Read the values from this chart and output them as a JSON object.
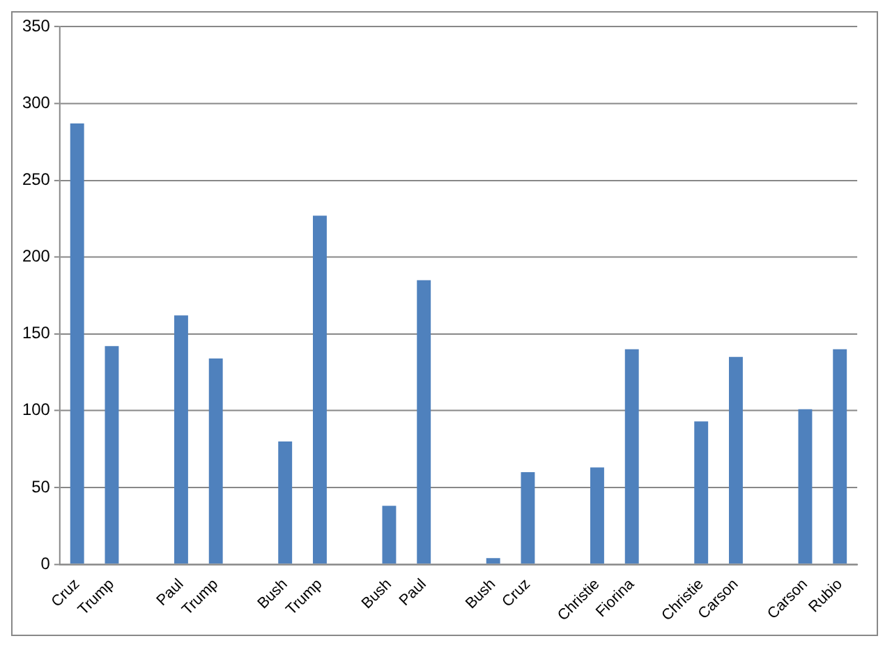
{
  "chart_data": {
    "type": "bar",
    "categories": [
      "Cruz",
      "Trump",
      null,
      "Paul",
      "Trump",
      null,
      "Bush",
      "Trump",
      null,
      "Bush",
      "Paul",
      null,
      "Bush",
      "Cruz",
      null,
      "Christie",
      "Fiorina",
      null,
      "Christie",
      "Carson",
      null,
      "Carson",
      "Rubio"
    ],
    "values": [
      287,
      142,
      null,
      162,
      134,
      null,
      80,
      227,
      null,
      38,
      185,
      null,
      4,
      60,
      null,
      63,
      140,
      null,
      93,
      135,
      null,
      101,
      140
    ],
    "color": "#4f81bd",
    "ylim": [
      0,
      350
    ],
    "yticks": [
      0,
      50,
      100,
      150,
      200,
      250,
      300,
      350
    ],
    "grid": "y",
    "legend": false
  }
}
